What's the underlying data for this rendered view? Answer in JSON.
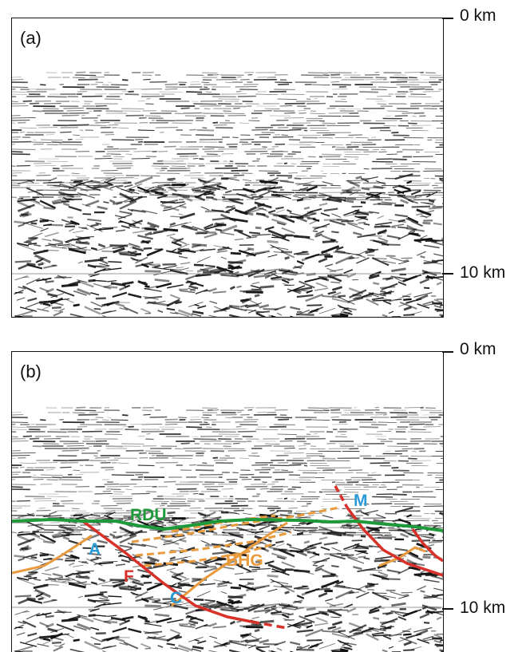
{
  "panels": [
    {
      "tag": "(a)",
      "depth_top": "0 km",
      "depth_10": "10 km"
    },
    {
      "tag": "(b)",
      "depth_top": "0 km",
      "depth_10": "10 km"
    }
  ],
  "interpretation": {
    "labels": [
      {
        "text": "RDU",
        "color": "#1f9a3a"
      },
      {
        "text": "M",
        "color": "#2a9bd6"
      },
      {
        "text": "A",
        "color": "#2a9bd6"
      },
      {
        "text": "F",
        "color": "#d8312a"
      },
      {
        "text": "BHG",
        "color": "#e89a3c"
      },
      {
        "text": "C",
        "color": "#2a9bd6"
      }
    ],
    "colors": {
      "horizon_rdu": "#1f9a3a",
      "fault": "#d8312a",
      "reflector": "#e89a3c"
    }
  }
}
